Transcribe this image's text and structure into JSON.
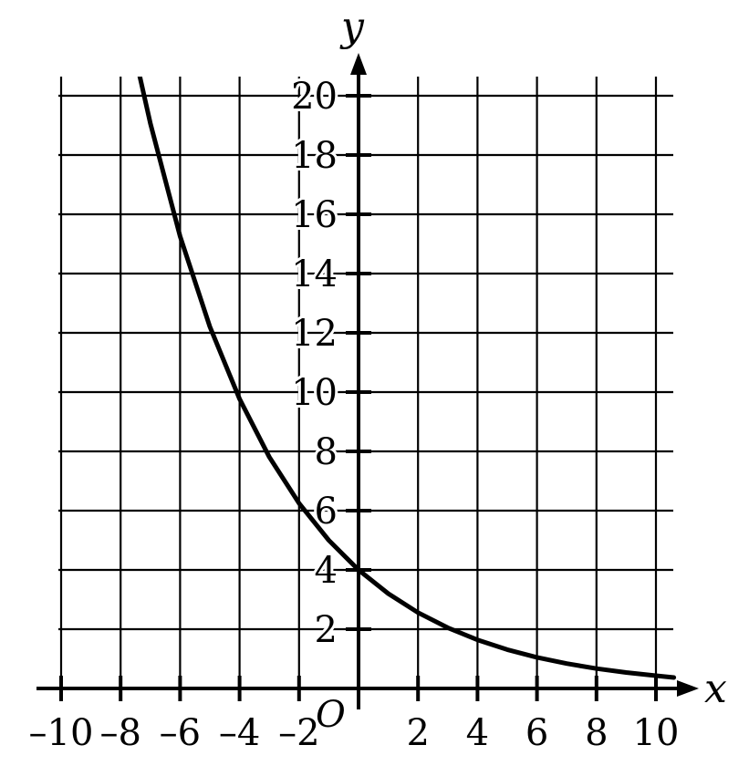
{
  "chart_data": {
    "type": "line",
    "function": "y = 4 * 0.8^x",
    "xlabel": "x",
    "ylabel": "y",
    "origin_label": "O",
    "xlim": [
      -10,
      10
    ],
    "ylim": [
      0,
      20
    ],
    "x_ticks": [
      -10,
      -8,
      -6,
      -4,
      -2,
      2,
      4,
      6,
      8,
      10
    ],
    "x_tick_labels": [
      "–10",
      "–8",
      "–6",
      "–4",
      "–2",
      "2",
      "4",
      "6",
      "8",
      "10"
    ],
    "y_ticks": [
      2,
      4,
      6,
      8,
      10,
      12,
      14,
      16,
      18,
      20
    ],
    "y_tick_labels": [
      "2",
      "4",
      "6",
      "8",
      "10",
      "12",
      "14",
      "16",
      "18",
      "20"
    ],
    "grid": true,
    "series": [
      {
        "x": [
          -7.5,
          -7,
          -6,
          -5,
          -4,
          -3,
          -2,
          -1,
          0,
          1,
          2,
          3,
          4,
          5,
          6,
          7,
          8,
          9,
          10,
          10.6
        ],
        "y": [
          21.3,
          19.07,
          15.26,
          12.21,
          9.77,
          7.81,
          6.25,
          5.0,
          4.0,
          3.2,
          2.56,
          2.05,
          1.64,
          1.31,
          1.05,
          0.84,
          0.67,
          0.54,
          0.43,
          0.37
        ]
      }
    ]
  }
}
